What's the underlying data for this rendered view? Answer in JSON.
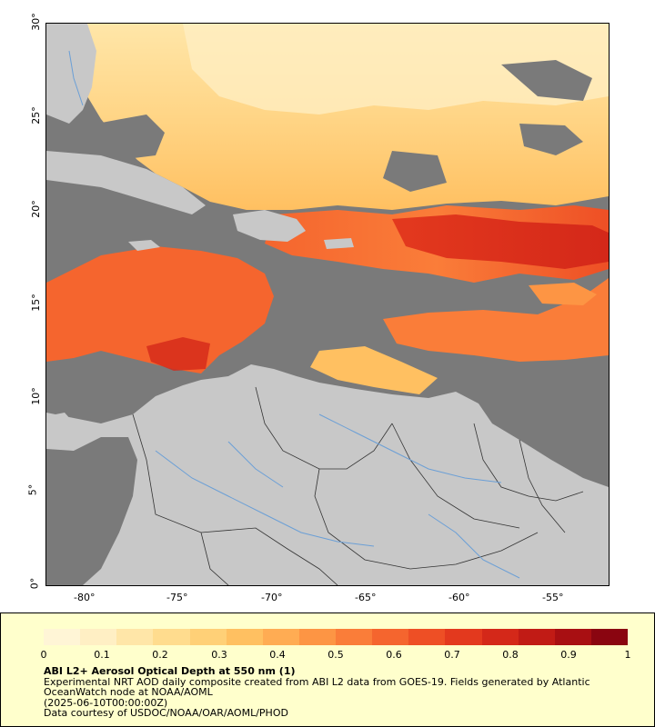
{
  "map": {
    "lat_labels": [
      "30°",
      "25°",
      "20°",
      "15°",
      "10°",
      "5°",
      "0°"
    ],
    "lon_labels": [
      "-80°",
      "-75°",
      "-70°",
      "-65°",
      "-60°",
      "-55°"
    ],
    "colors": {
      "ocean_nodata": "#7a7a7a",
      "land": "#c8c8c8",
      "borders": "#333333",
      "rivers": "#6b9fd6"
    }
  },
  "legend": {
    "ticks": [
      "0",
      "0.1",
      "0.2",
      "0.3",
      "0.4",
      "0.5",
      "0.6",
      "0.7",
      "0.8",
      "0.9",
      "1"
    ],
    "colors": [
      "#fff5d6",
      "#ffefc4",
      "#ffe6a8",
      "#ffdc8e",
      "#ffd077",
      "#ffc061",
      "#ffac53",
      "#fd9544",
      "#fa7d39",
      "#f5652e",
      "#ee4f25",
      "#e3391e",
      "#d42819",
      "#c11b15",
      "#a80f12",
      "#8a0510"
    ],
    "title": "ABI L2+ Aerosol Optical Depth at 550 nm (1)",
    "line1": "Experimental NRT AOD daily composite created from ABI L2 data from GOES-19. Fields generated by Atlantic",
    "line2": "OceanWatch node at NOAA/AOML",
    "line3": "(2025-06-10T00:00:00Z)",
    "line4": "Data courtesy of USDOC/NOAA/OAR/AOML/PHOD"
  }
}
